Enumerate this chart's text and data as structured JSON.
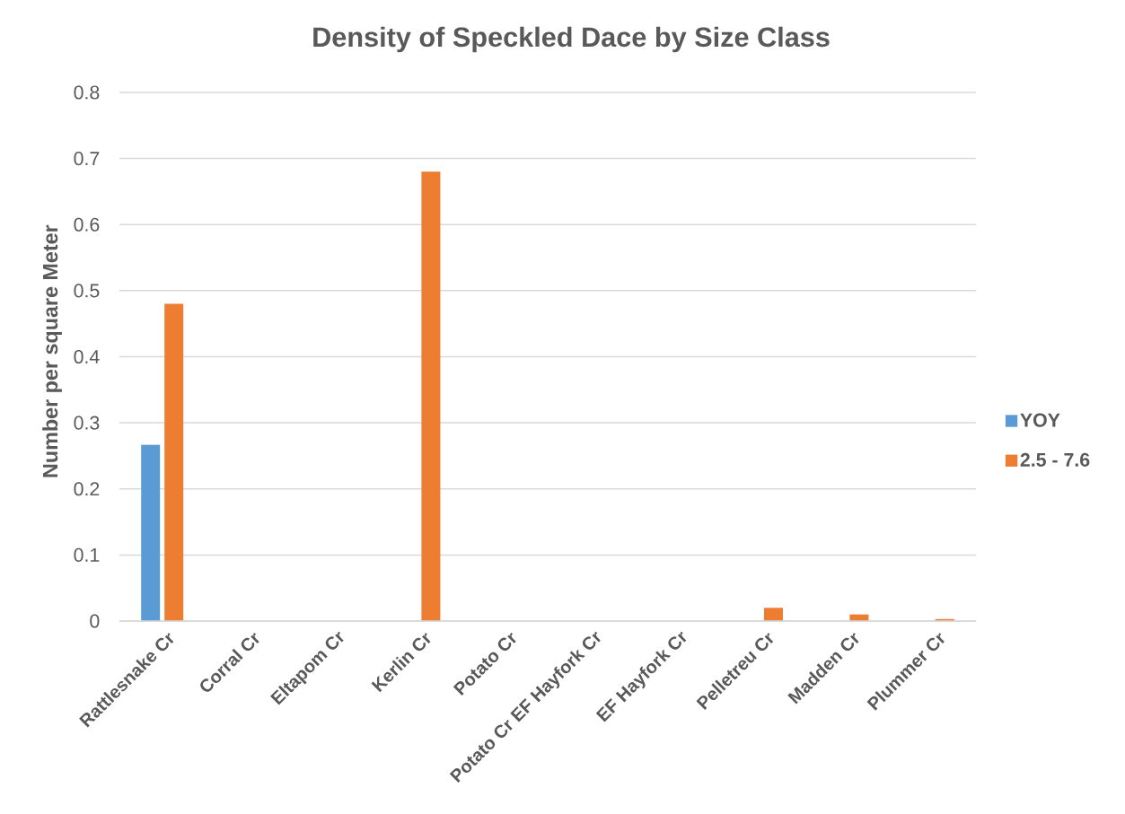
{
  "chart_data": {
    "type": "bar",
    "title": "Density of Speckled Dace by Size Class",
    "ylabel": "Number per square Meter",
    "categories": [
      "Rattlesnake Cr",
      "Corral Cr",
      "Eltapom Cr",
      "Kerlin Cr",
      "Potato Cr",
      "Potato Cr EF Hayfork Cr",
      "EF Hayfork Cr",
      "Pelletreu Cr",
      "Madden Cr",
      "Plummer Cr"
    ],
    "series": [
      {
        "name": "YOY",
        "color": "#5b9bd5",
        "values": [
          0.267,
          0,
          0,
          0,
          0,
          0,
          0,
          0,
          0,
          0
        ]
      },
      {
        "name": "2.5 - 7.6",
        "color": "#ed7d31",
        "values": [
          0.48,
          0,
          0,
          0.68,
          0,
          0,
          0,
          0.02,
          0.01,
          0.003
        ]
      }
    ],
    "ylim": [
      0,
      0.8
    ],
    "yticks": [
      0,
      0.1,
      0.2,
      0.3,
      0.4,
      0.5,
      0.6,
      0.7,
      0.8
    ],
    "grid": "y",
    "legend": "right"
  }
}
